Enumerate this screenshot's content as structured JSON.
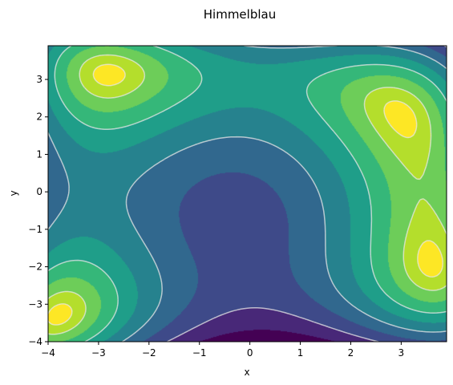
{
  "chart_data": {
    "type": "contour",
    "title": "Himmelblau",
    "xlabel": "x",
    "ylabel": "y",
    "xlim": [
      -4,
      3.9
    ],
    "ylim": [
      -4,
      3.9
    ],
    "x_ticks": [
      -4,
      -3,
      -2,
      -1,
      0,
      1,
      2,
      3
    ],
    "y_ticks": [
      -4,
      -3,
      -2,
      -1,
      0,
      1,
      2,
      3
    ],
    "x_tick_labels": [
      "−4",
      "−3",
      "−2",
      "−1",
      "0",
      "1",
      "2",
      "3"
    ],
    "y_tick_labels": [
      "−4",
      "−3",
      "−2",
      "−1",
      "0",
      "1",
      "2",
      "3"
    ],
    "colormap": "viridis",
    "filled_levels": 10,
    "dashed_contour_lines": true,
    "line_color": "#e6e6e6",
    "grid": false
  }
}
